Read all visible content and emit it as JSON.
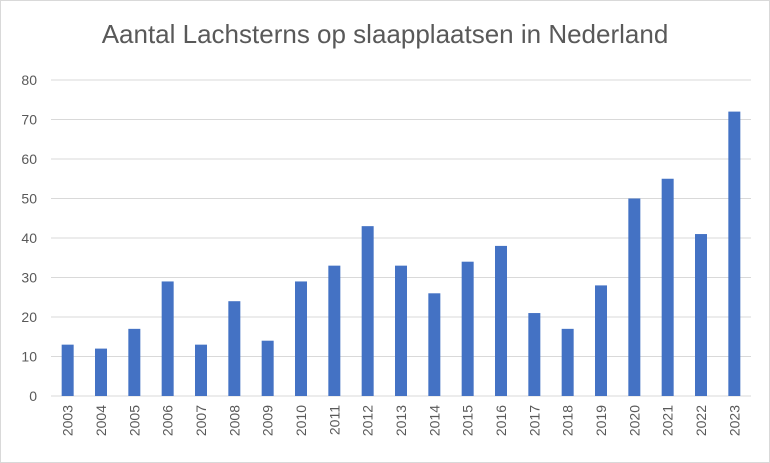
{
  "chart_data": {
    "type": "bar",
    "title": "Aantal Lachsterns op slaapplaatsen in Nederland",
    "xlabel": "",
    "ylabel": "",
    "categories": [
      "2003",
      "2004",
      "2005",
      "2006",
      "2007",
      "2008",
      "2009",
      "2010",
      "2011",
      "2012",
      "2013",
      "2014",
      "2015",
      "2016",
      "2017",
      "2018",
      "2019",
      "2020",
      "2021",
      "2022",
      "2023"
    ],
    "values": [
      13,
      12,
      17,
      29,
      13,
      24,
      14,
      29,
      33,
      43,
      33,
      26,
      34,
      38,
      21,
      17,
      28,
      50,
      55,
      41,
      72
    ],
    "ylim": [
      0,
      80
    ],
    "yticks": [
      0,
      10,
      20,
      30,
      40,
      50,
      60,
      70,
      80
    ],
    "grid": true,
    "legend": "none",
    "bar_color": "#4472c4",
    "grid_color": "#d9d9d9",
    "text_color": "#595959"
  }
}
